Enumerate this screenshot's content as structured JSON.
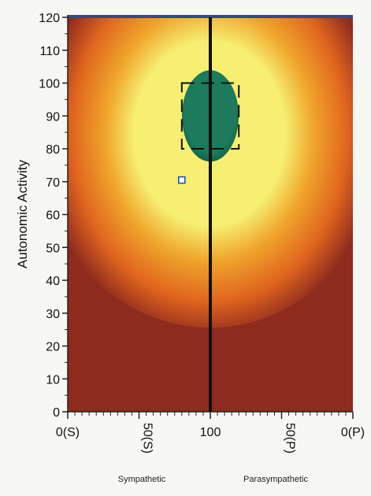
{
  "chart_data": {
    "type": "heatmap",
    "ylabel": "Autonomic Activity",
    "ylim": [
      0,
      120
    ],
    "yticks": [
      0,
      10,
      20,
      30,
      40,
      50,
      60,
      70,
      80,
      90,
      100,
      110,
      120
    ],
    "xticks": [
      {
        "label": "0(S)",
        "pos": 0,
        "rotated": false
      },
      {
        "label": "50(S)",
        "pos": 1,
        "rotated": true
      },
      {
        "label": "100",
        "pos": 2,
        "rotated": false
      },
      {
        "label": "50(P)",
        "pos": 3,
        "rotated": true
      },
      {
        "label": "0(P)",
        "pos": 4,
        "rotated": false
      }
    ],
    "xlim": [
      0,
      4
    ],
    "side_labels": {
      "left": "Sympathetic",
      "right": "Parasympathetic"
    },
    "center_line_x": 2,
    "highlight_region": {
      "x_range": [
        1.6,
        2.4
      ],
      "y_range": [
        80,
        100
      ]
    },
    "point": {
      "x": 1.6,
      "y": 70.5
    },
    "color_scale": {
      "background": "#8e2a1e",
      "outer": "#e0651e",
      "middle": "#f0a52c",
      "inner": "#f6ef72",
      "core": "#1d7a5c",
      "core_edge": "#0f5a44"
    }
  }
}
